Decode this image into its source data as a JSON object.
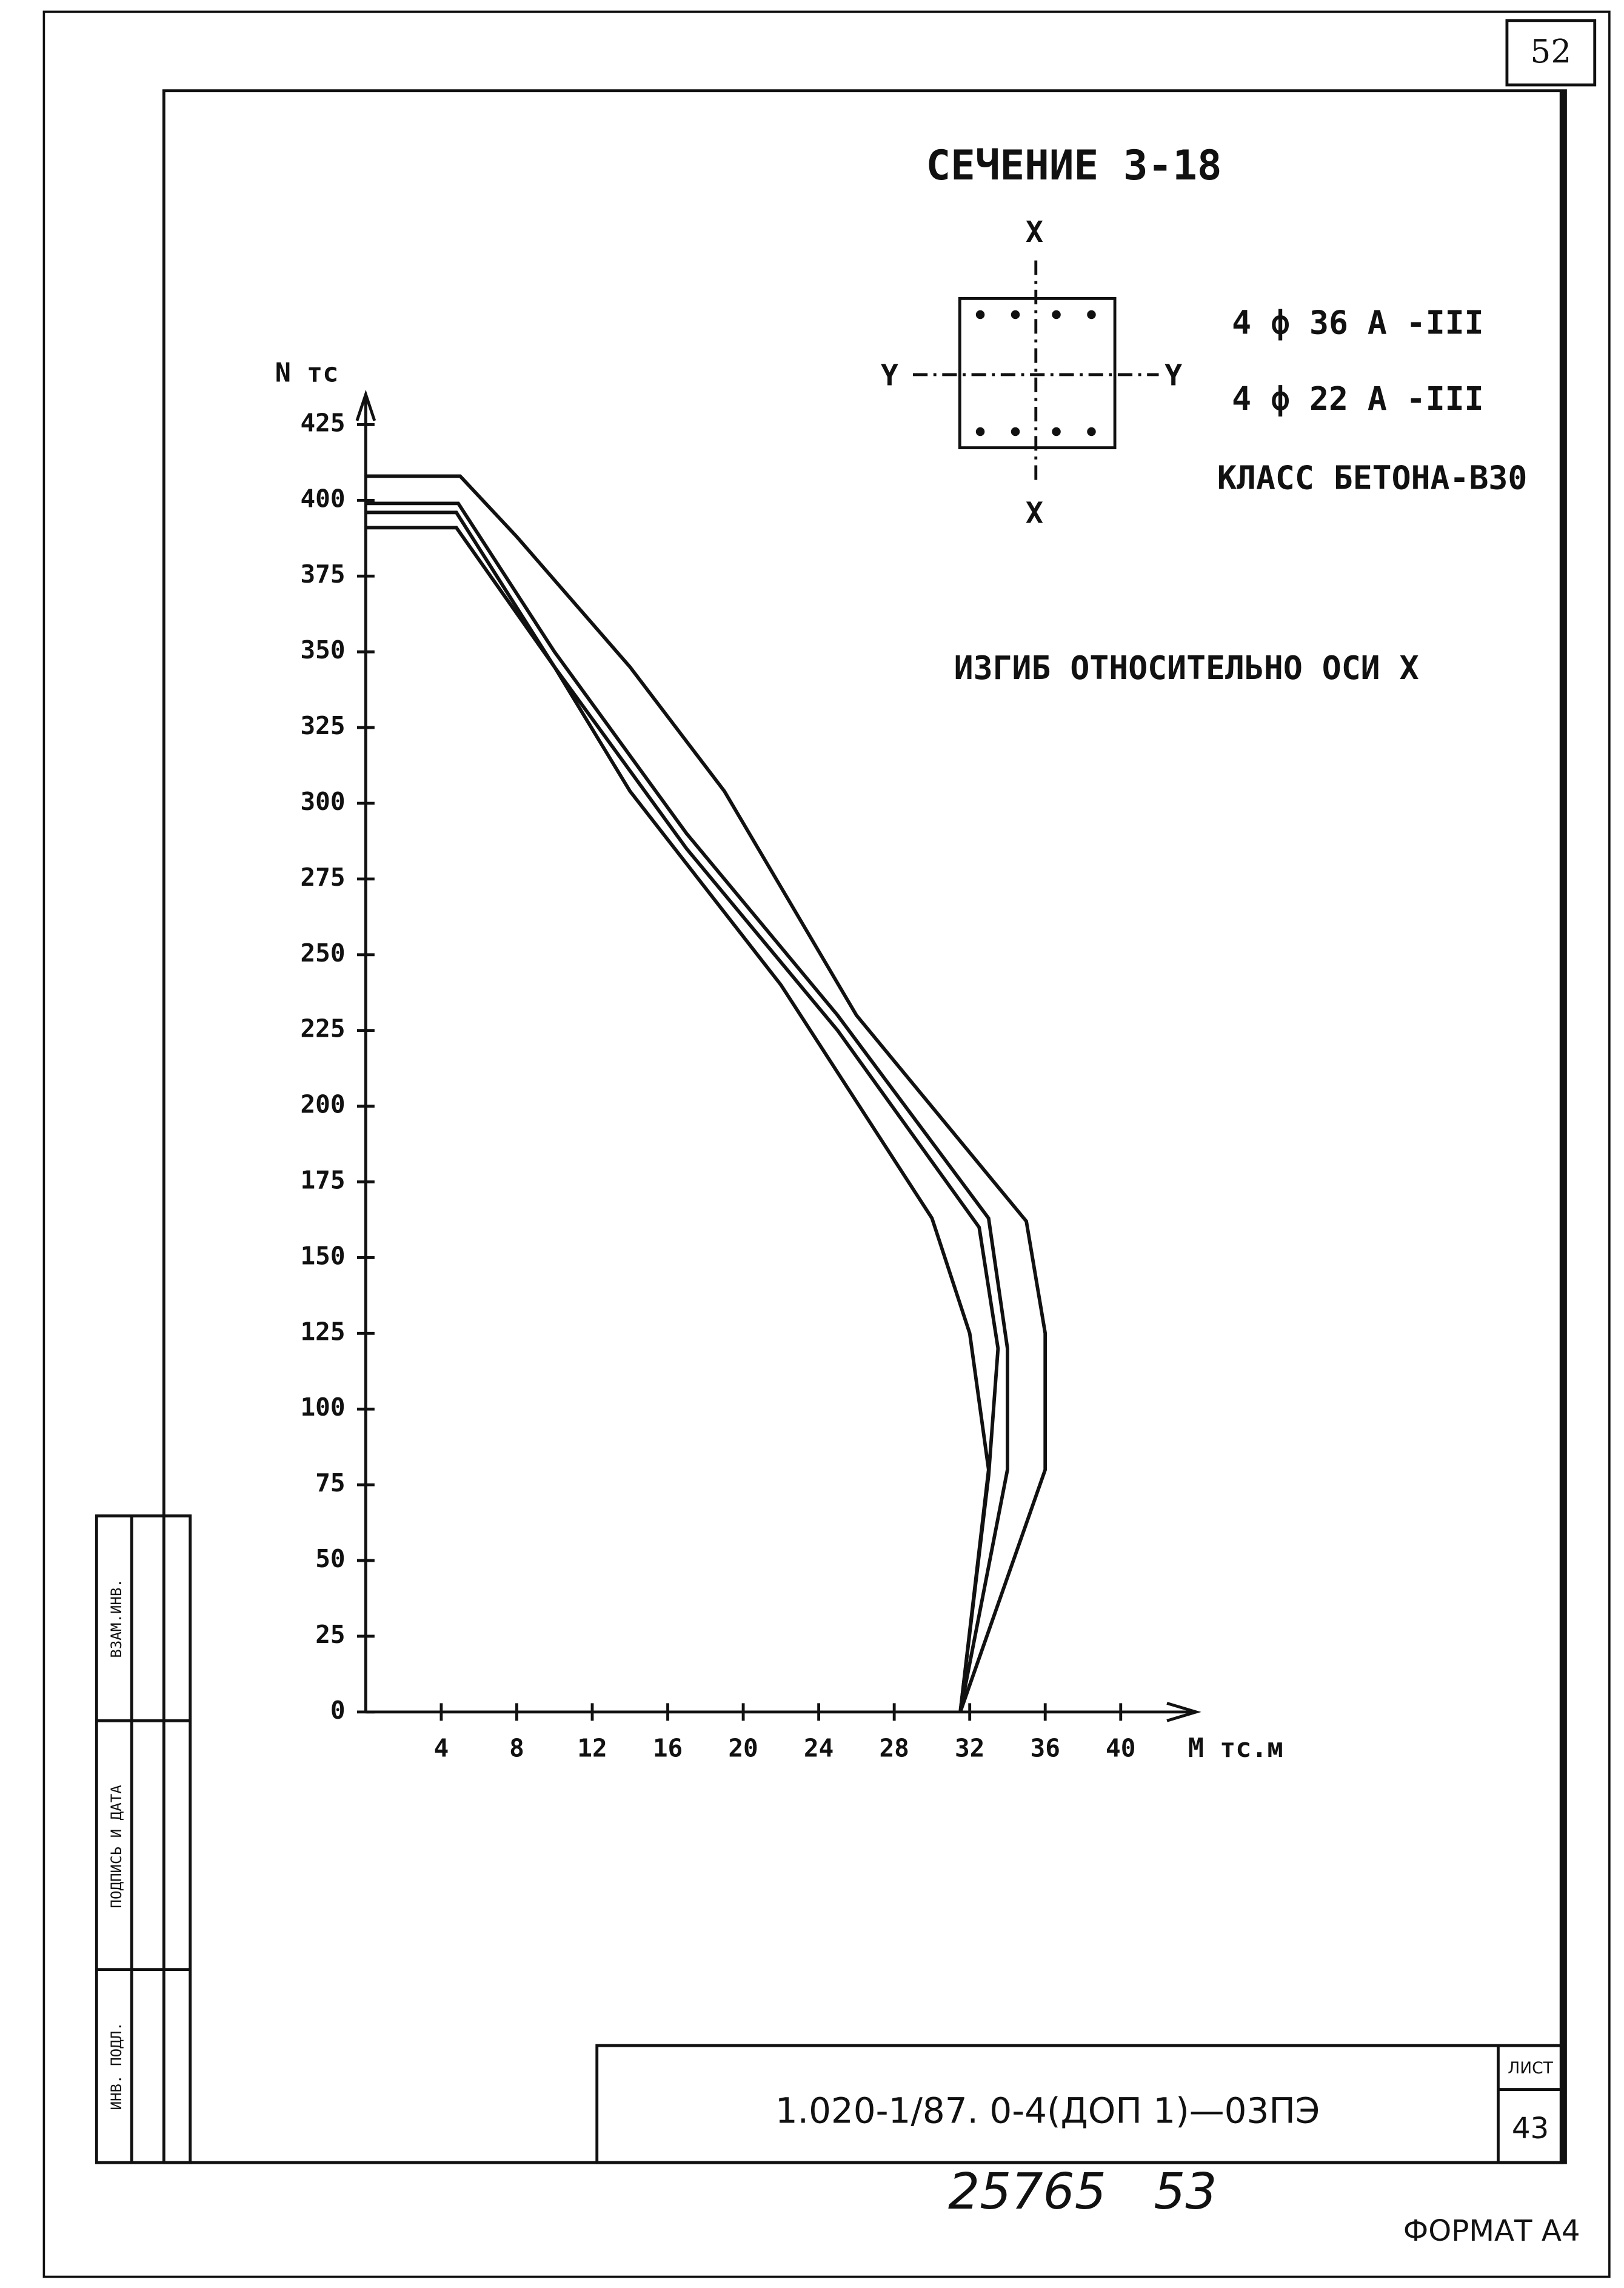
{
  "page_number": "52",
  "chart_data": {
    "type": "line",
    "title": "СЕЧЕНИЕ 3-18",
    "reinforcement": [
      "4 ф 36 А -III",
      "4 ф 22 А -III"
    ],
    "concrete": "КЛАСС БЕТОНА-В30",
    "section_axes": {
      "x_top": "X",
      "x_bottom": "X",
      "y_left": "Y",
      "y_right": "Y"
    },
    "subtitle": "ИЗГИБ ОТНОСИТЕЛЬНО ОСИ X",
    "ylabel": "N тс",
    "xlabel": "M тс.м",
    "xlim": [
      0,
      44
    ],
    "ylim": [
      0,
      435
    ],
    "xticks": [
      4,
      8,
      12,
      16,
      20,
      24,
      28,
      32,
      36,
      40
    ],
    "yticks": [
      0,
      25,
      50,
      75,
      100,
      125,
      150,
      175,
      200,
      225,
      250,
      275,
      300,
      325,
      350,
      375,
      400,
      425
    ],
    "grid": false,
    "series": [
      {
        "color": "#111",
        "x": [
          0,
          5,
          8,
          14,
          19,
          26,
          35,
          36,
          36,
          31.5
        ],
        "values": [
          408,
          408,
          388,
          345,
          304,
          230,
          162,
          125,
          80,
          0
        ]
      },
      {
        "color": "#111",
        "x": [
          0,
          4.9,
          10,
          17,
          25,
          33,
          34,
          34,
          31.5
        ],
        "values": [
          399,
          399,
          350,
          290,
          230,
          163,
          120,
          80,
          0
        ]
      },
      {
        "color": "#111",
        "x": [
          0,
          4.8,
          10,
          17,
          25,
          32.5,
          33.5,
          33,
          31.5
        ],
        "values": [
          396,
          396,
          345,
          285,
          225,
          160,
          120,
          78,
          0
        ]
      },
      {
        "color": "#111",
        "x": [
          0,
          4.8,
          10,
          14,
          22,
          30,
          32,
          33,
          31.5
        ],
        "values": [
          391,
          391,
          345,
          304,
          240,
          163,
          125,
          80,
          0
        ]
      }
    ]
  },
  "side_stamp": [
    "ВЗАМ.ИНВ.",
    "ПОДПИСЬ И ДАТА",
    "ИНВ. ПОДЛ."
  ],
  "title_block": {
    "code": "1.020-1/87. 0-4(ДОП 1)—03ПЭ",
    "sheet_label": "ЛИСТ",
    "sheet": "43"
  },
  "footer": {
    "handwritten": "25765   53",
    "format": "ФОРМАТ А4"
  }
}
